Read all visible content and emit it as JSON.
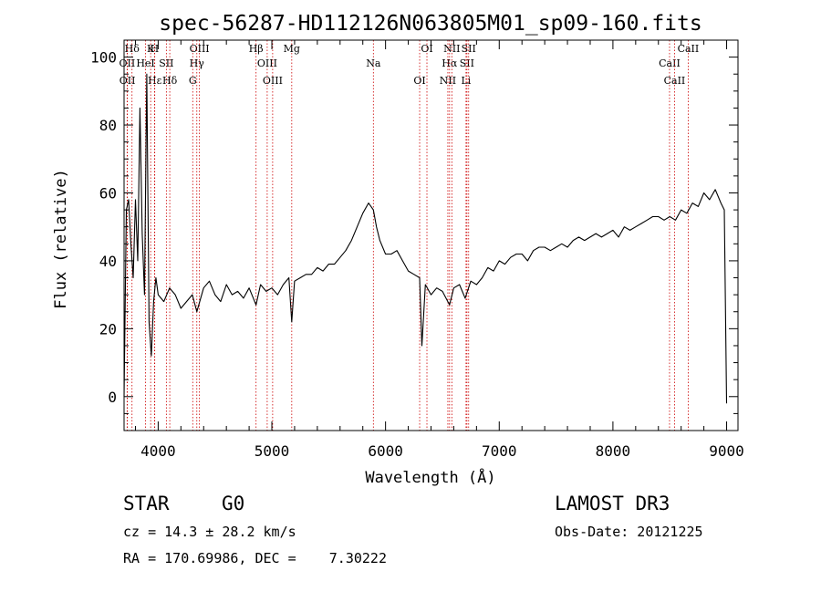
{
  "chart_data": {
    "type": "line",
    "title": "spec-56287-HD112126N063805M01_sp09-160.fits",
    "xlabel": "Wavelength (Å)",
    "ylabel": "Flux (relative)",
    "xlim": [
      3700,
      9100
    ],
    "ylim": [
      -10,
      105
    ],
    "xticks": [
      4000,
      5000,
      6000,
      7000,
      8000,
      9000
    ],
    "yticks": [
      0,
      20,
      40,
      60,
      80,
      100
    ],
    "series": [
      {
        "name": "spectrum",
        "x": [
          3700,
          3720,
          3740,
          3760,
          3780,
          3800,
          3820,
          3840,
          3860,
          3880,
          3900,
          3920,
          3940,
          3960,
          3980,
          4000,
          4050,
          4100,
          4150,
          4200,
          4250,
          4300,
          4340,
          4400,
          4450,
          4500,
          4550,
          4600,
          4650,
          4700,
          4750,
          4800,
          4861,
          4900,
          4950,
          5000,
          5050,
          5100,
          5150,
          5175,
          5200,
          5250,
          5300,
          5350,
          5400,
          5450,
          5500,
          5550,
          5600,
          5650,
          5700,
          5750,
          5800,
          5850,
          5893,
          5920,
          5950,
          6000,
          6050,
          6100,
          6150,
          6200,
          6250,
          6300,
          6320,
          6350,
          6400,
          6450,
          6500,
          6563,
          6600,
          6650,
          6700,
          6750,
          6800,
          6850,
          6900,
          6950,
          7000,
          7050,
          7100,
          7150,
          7200,
          7250,
          7300,
          7350,
          7400,
          7450,
          7500,
          7550,
          7600,
          7650,
          7700,
          7750,
          7800,
          7850,
          7900,
          7950,
          8000,
          8050,
          8100,
          8150,
          8200,
          8250,
          8300,
          8350,
          8400,
          8450,
          8500,
          8550,
          8600,
          8650,
          8700,
          8750,
          8800,
          8850,
          8900,
          8950,
          8980,
          9000
        ],
        "y": [
          0,
          55,
          58,
          45,
          35,
          58,
          40,
          85,
          48,
          30,
          95,
          22,
          12,
          28,
          35,
          30,
          28,
          32,
          30,
          26,
          28,
          30,
          25,
          32,
          34,
          30,
          28,
          33,
          30,
          31,
          29,
          32,
          27,
          33,
          31,
          32,
          30,
          33,
          35,
          22,
          34,
          35,
          36,
          36,
          38,
          37,
          39,
          39,
          41,
          43,
          46,
          50,
          54,
          57,
          55,
          50,
          46,
          42,
          42,
          43,
          40,
          37,
          36,
          35,
          15,
          33,
          30,
          32,
          31,
          27,
          32,
          33,
          29,
          34,
          33,
          35,
          38,
          37,
          40,
          39,
          41,
          42,
          42,
          40,
          43,
          44,
          44,
          43,
          44,
          45,
          44,
          46,
          47,
          46,
          47,
          48,
          47,
          48,
          49,
          47,
          50,
          49,
          50,
          51,
          52,
          53,
          53,
          52,
          53,
          52,
          55,
          54,
          57,
          56,
          60,
          58,
          61,
          57,
          55,
          -2
        ]
      }
    ],
    "line_markers": [
      {
        "label": "Hδ",
        "x": 3770
      },
      {
        "label": "OII",
        "x": 3727
      },
      {
        "label": "OII",
        "x": 3729
      },
      {
        "label": "K",
        "x": 3934
      },
      {
        "label": "HeI",
        "x": 3889
      },
      {
        "label": "Hε",
        "x": 3970
      },
      {
        "label": "H",
        "x": 3968
      },
      {
        "label": "SII",
        "x": 4072
      },
      {
        "label": "Hδ",
        "x": 4102
      },
      {
        "label": "OIII",
        "x": 4363
      },
      {
        "label": "Hγ",
        "x": 4340
      },
      {
        "label": "G",
        "x": 4304
      },
      {
        "label": "Hβ",
        "x": 4861
      },
      {
        "label": "OIII",
        "x": 4959
      },
      {
        "label": "OIII",
        "x": 5007
      },
      {
        "label": "Mg",
        "x": 5175
      },
      {
        "label": "Na",
        "x": 5893
      },
      {
        "label": "OI",
        "x": 6300
      },
      {
        "label": "OI",
        "x": 6364
      },
      {
        "label": "Hα",
        "x": 6563
      },
      {
        "label": "NII",
        "x": 6548
      },
      {
        "label": "NII",
        "x": 6583
      },
      {
        "label": "SII",
        "x": 6716
      },
      {
        "label": "Li",
        "x": 6708
      },
      {
        "label": "SII",
        "x": 6731
      },
      {
        "label": "CaII",
        "x": 8498
      },
      {
        "label": "CaII",
        "x": 8542
      },
      {
        "label": "CaII",
        "x": 8662
      }
    ]
  },
  "info": {
    "object_class": "STAR",
    "subclass": "G0",
    "survey": "LAMOST DR3",
    "redshift": "cz = 14.3 ± 28.2 km/s",
    "obs_date": "Obs-Date: 20121225",
    "coords": "RA = 170.69986, DEC =    7.30222"
  },
  "colors": {
    "axis": "#000000",
    "spectrum": "#000000",
    "marker": "#cc0000"
  }
}
